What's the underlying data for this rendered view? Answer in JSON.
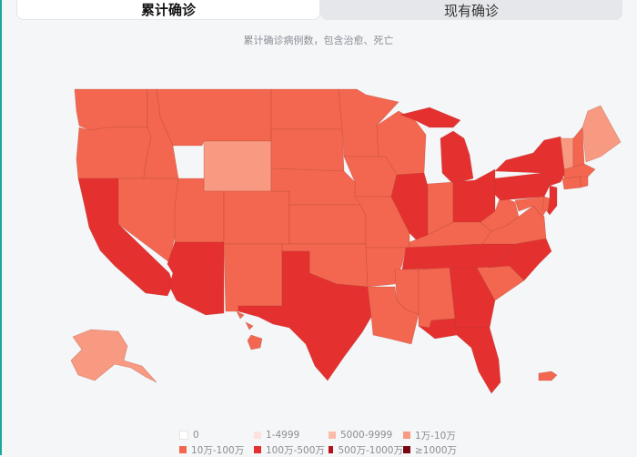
{
  "tabs": {
    "cumulative": "累计确诊",
    "current": "现有确诊"
  },
  "subtitle": "累计确诊病例数，包含治愈、死亡",
  "colors": {
    "0": "#ffffff",
    "1-4999": "#fde3dc",
    "5000-9999": "#fbbca9",
    "1万-10万": "#f89a82",
    "10万-100万": "#f36750",
    "100万-500万": "#e53030",
    "500万-1000万": "#b3121a",
    "≥1000万": "#7a0710"
  },
  "legend": [
    {
      "label": "0",
      "color_key": "0"
    },
    {
      "label": "1-4999",
      "color_key": "1-4999"
    },
    {
      "label": "5000-9999",
      "color_key": "5000-9999"
    },
    {
      "label": "1万-10万",
      "color_key": "1万-10万"
    },
    {
      "label": "10万-100万",
      "color_key": "10万-100万"
    },
    {
      "label": "100万-500万",
      "color_key": "100万-500万"
    },
    {
      "label": "500万-1000万",
      "color_key": "500万-1000万"
    },
    {
      "label": "≥1000万",
      "color_key": "≥1000万"
    }
  ],
  "states": [
    {
      "id": "WA",
      "bucket": "10万-100万"
    },
    {
      "id": "OR",
      "bucket": "10万-100万"
    },
    {
      "id": "CA",
      "bucket": "100万-500万"
    },
    {
      "id": "ID",
      "bucket": "10万-100万"
    },
    {
      "id": "NV",
      "bucket": "10万-100万"
    },
    {
      "id": "MT",
      "bucket": "10万-100万"
    },
    {
      "id": "WY",
      "bucket": "1万-10万"
    },
    {
      "id": "UT",
      "bucket": "10万-100万"
    },
    {
      "id": "AZ",
      "bucket": "100万-500万"
    },
    {
      "id": "CO",
      "bucket": "10万-100万"
    },
    {
      "id": "NM",
      "bucket": "10万-100万"
    },
    {
      "id": "ND",
      "bucket": "10万-100万"
    },
    {
      "id": "SD",
      "bucket": "10万-100万"
    },
    {
      "id": "NE",
      "bucket": "10万-100万"
    },
    {
      "id": "KS",
      "bucket": "10万-100万"
    },
    {
      "id": "OK",
      "bucket": "10万-100万"
    },
    {
      "id": "TX",
      "bucket": "100万-500万"
    },
    {
      "id": "MN",
      "bucket": "10万-100万"
    },
    {
      "id": "IA",
      "bucket": "10万-100万"
    },
    {
      "id": "MO",
      "bucket": "10万-100万"
    },
    {
      "id": "AR",
      "bucket": "10万-100万"
    },
    {
      "id": "LA",
      "bucket": "10万-100万"
    },
    {
      "id": "WI",
      "bucket": "10万-100万"
    },
    {
      "id": "IL",
      "bucket": "100万-500万"
    },
    {
      "id": "MI",
      "bucket": "100万-500万"
    },
    {
      "id": "IN",
      "bucket": "10万-100万"
    },
    {
      "id": "OH",
      "bucket": "100万-500万"
    },
    {
      "id": "KY",
      "bucket": "10万-100万"
    },
    {
      "id": "TN",
      "bucket": "100万-500万"
    },
    {
      "id": "MS",
      "bucket": "10万-100万"
    },
    {
      "id": "AL",
      "bucket": "10万-100万"
    },
    {
      "id": "GA",
      "bucket": "100万-500万"
    },
    {
      "id": "FL",
      "bucket": "100万-500万"
    },
    {
      "id": "SC",
      "bucket": "10万-100万"
    },
    {
      "id": "NC",
      "bucket": "100万-500万"
    },
    {
      "id": "VA",
      "bucket": "10万-100万"
    },
    {
      "id": "WV",
      "bucket": "10万-100万"
    },
    {
      "id": "PA",
      "bucket": "100万-500万"
    },
    {
      "id": "NY",
      "bucket": "100万-500万"
    },
    {
      "id": "NJ",
      "bucket": "100万-500万"
    },
    {
      "id": "MD",
      "bucket": "10万-100万"
    },
    {
      "id": "DE",
      "bucket": "10万-100万"
    },
    {
      "id": "VT",
      "bucket": "1万-10万"
    },
    {
      "id": "NH",
      "bucket": "10万-100万"
    },
    {
      "id": "MA",
      "bucket": "10万-100万"
    },
    {
      "id": "CT",
      "bucket": "10万-100万"
    },
    {
      "id": "RI",
      "bucket": "10万-100万"
    },
    {
      "id": "ME",
      "bucket": "1万-10万"
    },
    {
      "id": "AK",
      "bucket": "1万-10万"
    },
    {
      "id": "HI",
      "bucket": "10万-100万"
    },
    {
      "id": "PR",
      "bucket": "10万-100万"
    }
  ]
}
